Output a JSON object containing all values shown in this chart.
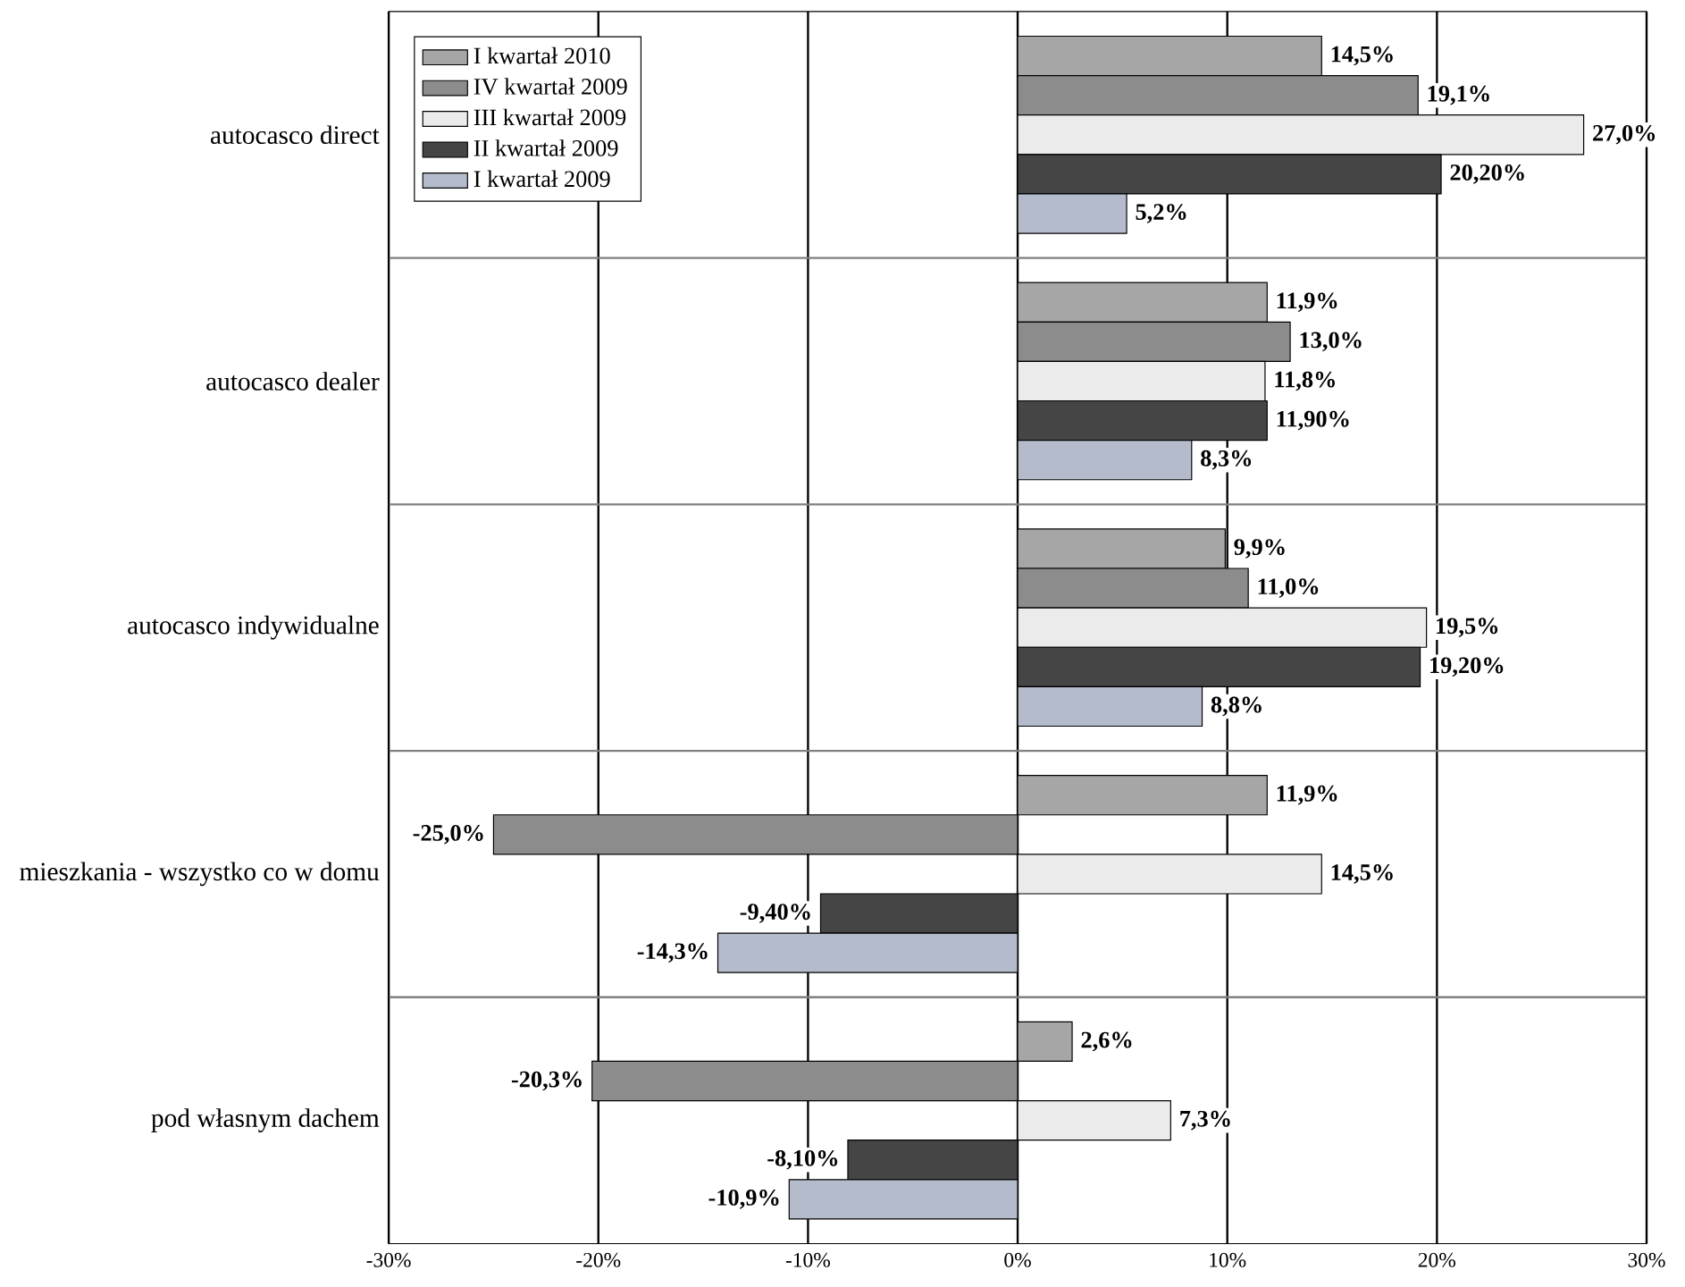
{
  "chart_data": {
    "type": "bar",
    "orientation": "horizontal",
    "categories": [
      "autocasco direct",
      "autocasco dealer",
      "autocasco indywidualne",
      "mieszkania - wszystko co w domu",
      "pod własnym dachem"
    ],
    "series": [
      {
        "name": "I kwartał 2010",
        "color": "#a6a6a6",
        "values": [
          14.5,
          11.9,
          9.9,
          11.9,
          2.6
        ],
        "value_labels": [
          "14,5%",
          "11,9%",
          "9,9%",
          "11,9%",
          "2,6%"
        ]
      },
      {
        "name": "IV kwartał 2009",
        "color": "#8c8c8c",
        "values": [
          19.1,
          13.0,
          11.0,
          -25.0,
          -20.3
        ],
        "value_labels": [
          "19,1%",
          "13,0%",
          "11,0%",
          "-25,0%",
          "-20,3%"
        ]
      },
      {
        "name": "III kwartał 2009",
        "color": "#ebebeb",
        "values": [
          27.0,
          11.8,
          19.5,
          14.5,
          7.3
        ],
        "value_labels": [
          "27,0%",
          "11,8%",
          "19,5%",
          "14,5%",
          "7,3%"
        ]
      },
      {
        "name": "II kwartał 2009",
        "color": "#454545",
        "values": [
          20.2,
          11.9,
          19.2,
          -9.4,
          -8.1
        ],
        "value_labels": [
          "20,20%",
          "11,90%",
          "19,20%",
          "-9,40%",
          "-8,10%"
        ]
      },
      {
        "name": "I kwartał 2009",
        "color": "#b4bccb",
        "values": [
          5.2,
          8.3,
          8.8,
          -14.3,
          -10.9
        ],
        "value_labels": [
          "5,2%",
          "8,3%",
          "8,8%",
          "-14,3%",
          "-10,9%"
        ]
      }
    ],
    "xlim": [
      -30,
      30
    ],
    "xticks": [
      {
        "value": -30,
        "label": "-30%"
      },
      {
        "value": -20,
        "label": "-20%"
      },
      {
        "value": -10,
        "label": "-10%"
      },
      {
        "value": 0,
        "label": "0%"
      },
      {
        "value": 10,
        "label": "10%"
      },
      {
        "value": 20,
        "label": "20%"
      },
      {
        "value": 30,
        "label": "30%"
      }
    ],
    "grid": true,
    "legend": "top left"
  }
}
